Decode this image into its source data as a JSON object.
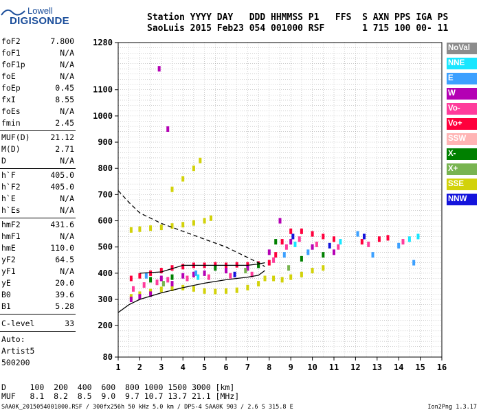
{
  "logo": {
    "top": "Lowell",
    "bottom": "DIGISONDE"
  },
  "header": {
    "line1": "Station YYYY DAY   DDD HHMMSS P1   FFS  S AXN PPS IGA PS",
    "line2": "SaoLuis 2015 Feb23 054 001000 RSF       1 715 100 00- 11"
  },
  "params": {
    "group1": [
      {
        "k": "foF2",
        "v": "7.800"
      },
      {
        "k": "foF1",
        "v": "N/A"
      },
      {
        "k": "foF1p",
        "v": "N/A"
      },
      {
        "k": "foE",
        "v": "N/A"
      },
      {
        "k": "foEp",
        "v": "0.45"
      },
      {
        "k": "fxI",
        "v": "8.55"
      },
      {
        "k": "foEs",
        "v": "N/A"
      },
      {
        "k": "fmin",
        "v": "2.45"
      }
    ],
    "group2": [
      {
        "k": "MUF(D)",
        "v": "21.12"
      },
      {
        "k": "M(D)",
        "v": "2.71"
      },
      {
        "k": "D",
        "v": "N/A"
      }
    ],
    "group3": [
      {
        "k": "h`F",
        "v": "405.0"
      },
      {
        "k": "h`F2",
        "v": "405.0"
      },
      {
        "k": "h`E",
        "v": "N/A"
      },
      {
        "k": "h`Es",
        "v": "N/A"
      }
    ],
    "group4": [
      {
        "k": "hmF2",
        "v": "431.6"
      },
      {
        "k": "hmF1",
        "v": "N/A"
      },
      {
        "k": "hmE",
        "v": "110.0"
      },
      {
        "k": "yF2",
        "v": "64.5"
      },
      {
        "k": "yF1",
        "v": "N/A"
      },
      {
        "k": "yE",
        "v": "20.0"
      },
      {
        "k": "B0",
        "v": "39.6"
      },
      {
        "k": "B1",
        "v": "5.28"
      }
    ],
    "clevel": {
      "k": "C-level",
      "v": "33"
    },
    "auto": [
      "Auto:",
      "Artist5",
      "500200"
    ]
  },
  "legend": [
    {
      "label": "NoVal",
      "color": "#8c8c8c"
    },
    {
      "label": "NNE",
      "color": "#19e6ff"
    },
    {
      "label": "E",
      "color": "#3ca0ff"
    },
    {
      "label": "W",
      "color": "#b400b4"
    },
    {
      "label": "Vo-",
      "color": "#ff3c9c"
    },
    {
      "label": "Vo+",
      "color": "#ff003c"
    },
    {
      "label": "SSW",
      "color": "#ffb4b4"
    },
    {
      "label": "X-",
      "color": "#008000"
    },
    {
      "label": "X+",
      "color": "#78b450"
    },
    {
      "label": "SSE",
      "color": "#d2d20a"
    },
    {
      "label": "NNW",
      "color": "#1414dc"
    }
  ],
  "footer": {
    "d_line": "D     100  200  400  600  800 1000 1500 3000 [km]",
    "muf_line": "MUF   8.1  8.2  8.5  9.0  9.7 10.7 13.7 21.1 [MHz]",
    "info": "SAA0K_2015054001000.RSF / 300fx256h 50 kHz 5.0 km / DPS-4 SAA0K 903 / 2.6 S 315.8 E",
    "version": "Ion2Png 1.3.17"
  },
  "chart_data": {
    "type": "scatter",
    "xlim": [
      1,
      16
    ],
    "ylim": [
      80,
      1280
    ],
    "xticks": [
      1,
      2,
      3,
      4,
      5,
      6,
      7,
      8,
      9,
      10,
      11,
      12,
      13,
      14,
      15,
      16
    ],
    "yticks": [
      80,
      200,
      300,
      400,
      500,
      600,
      700,
      800,
      900,
      1000,
      1100,
      1280
    ],
    "grid": true,
    "legend_position": "right",
    "series": [
      {
        "name": "SSE",
        "color": "#d2d20a",
        "points": [
          [
            1.6,
            310
          ],
          [
            2.0,
            320
          ],
          [
            2.5,
            330
          ],
          [
            3.0,
            338
          ],
          [
            3.5,
            342
          ],
          [
            4.0,
            345
          ],
          [
            4.5,
            340
          ],
          [
            5.0,
            332
          ],
          [
            5.5,
            330
          ],
          [
            6.0,
            332
          ],
          [
            6.5,
            335
          ],
          [
            7.0,
            345
          ],
          [
            7.5,
            360
          ],
          [
            7.8,
            380
          ],
          [
            1.6,
            565
          ],
          [
            2.0,
            568
          ],
          [
            2.5,
            572
          ],
          [
            3.0,
            575
          ],
          [
            3.5,
            580
          ],
          [
            4.0,
            585
          ],
          [
            4.5,
            592
          ],
          [
            5.0,
            600
          ],
          [
            5.3,
            610
          ],
          [
            3.5,
            720
          ],
          [
            4.0,
            760
          ],
          [
            4.5,
            800
          ],
          [
            4.8,
            830
          ],
          [
            8.2,
            380
          ],
          [
            8.6,
            375
          ],
          [
            9.0,
            385
          ],
          [
            9.5,
            395
          ],
          [
            10.0,
            410
          ],
          [
            10.5,
            420
          ]
        ]
      },
      {
        "name": "Vo+",
        "color": "#ff003c",
        "points": [
          [
            1.6,
            380
          ],
          [
            2.0,
            390
          ],
          [
            2.5,
            400
          ],
          [
            3.0,
            410
          ],
          [
            3.5,
            420
          ],
          [
            4.0,
            425
          ],
          [
            4.5,
            430
          ],
          [
            5.0,
            430
          ],
          [
            5.5,
            432
          ],
          [
            6.0,
            430
          ],
          [
            6.5,
            432
          ],
          [
            7.0,
            432
          ],
          [
            7.5,
            435
          ],
          [
            8.0,
            440
          ],
          [
            8.3,
            470
          ],
          [
            8.6,
            520
          ],
          [
            9.0,
            560
          ],
          [
            9.5,
            560
          ],
          [
            10.0,
            550
          ],
          [
            10.5,
            540
          ],
          [
            11.0,
            530
          ],
          [
            12.3,
            520
          ],
          [
            13.1,
            530
          ],
          [
            13.5,
            535
          ]
        ]
      },
      {
        "name": "W",
        "color": "#b400b4",
        "points": [
          [
            1.6,
            300
          ],
          [
            2.0,
            310
          ],
          [
            2.5,
            320
          ],
          [
            3.0,
            380
          ],
          [
            3.5,
            360
          ],
          [
            4.0,
            390
          ],
          [
            4.5,
            395
          ],
          [
            5.0,
            400
          ],
          [
            6.0,
            410
          ],
          [
            7.0,
            420
          ],
          [
            8.0,
            480
          ],
          [
            8.5,
            600
          ],
          [
            9.0,
            520
          ],
          [
            10.0,
            500
          ],
          [
            11.0,
            480
          ],
          [
            3.3,
            950
          ],
          [
            2.9,
            1180
          ]
        ]
      },
      {
        "name": "Vo-",
        "color": "#ff3c9c",
        "points": [
          [
            1.7,
            340
          ],
          [
            2.2,
            355
          ],
          [
            2.8,
            365
          ],
          [
            3.3,
            375
          ],
          [
            4.2,
            380
          ],
          [
            5.2,
            385
          ],
          [
            6.2,
            390
          ],
          [
            7.2,
            395
          ],
          [
            8.2,
            450
          ],
          [
            8.8,
            500
          ],
          [
            9.4,
            530
          ],
          [
            10.2,
            510
          ],
          [
            11.2,
            500
          ],
          [
            12.6,
            510
          ],
          [
            14.2,
            520
          ]
        ]
      },
      {
        "name": "X-",
        "color": "#008000",
        "points": [
          [
            2.5,
            375
          ],
          [
            3.5,
            385
          ],
          [
            5.5,
            420
          ],
          [
            7.5,
            430
          ],
          [
            8.3,
            520
          ],
          [
            9.5,
            455
          ],
          [
            10.5,
            470
          ]
        ]
      },
      {
        "name": "E",
        "color": "#3ca0ff",
        "points": [
          [
            2.3,
            390
          ],
          [
            4.6,
            400
          ],
          [
            8.7,
            470
          ],
          [
            9.8,
            480
          ],
          [
            12.1,
            550
          ],
          [
            12.8,
            470
          ],
          [
            14.0,
            505
          ],
          [
            14.7,
            440
          ]
        ]
      },
      {
        "name": "NNE",
        "color": "#19e6ff",
        "points": [
          [
            4.7,
            385
          ],
          [
            9.2,
            510
          ],
          [
            11.3,
            520
          ],
          [
            14.5,
            530
          ],
          [
            14.9,
            540
          ]
        ]
      },
      {
        "name": "NNW",
        "color": "#1414dc",
        "points": [
          [
            6.4,
            395
          ],
          [
            9.1,
            540
          ],
          [
            10.8,
            505
          ],
          [
            12.4,
            540
          ]
        ]
      },
      {
        "name": "X+",
        "color": "#78b450",
        "points": [
          [
            3.1,
            360
          ],
          [
            6.9,
            410
          ],
          [
            8.9,
            420
          ]
        ]
      }
    ],
    "curves": [
      {
        "style": "solid",
        "color": "#000000",
        "points": [
          [
            1.0,
            250
          ],
          [
            1.5,
            280
          ],
          [
            2.0,
            300
          ],
          [
            3.0,
            325
          ],
          [
            4.0,
            345
          ],
          [
            5.0,
            362
          ],
          [
            6.0,
            375
          ],
          [
            7.0,
            385
          ],
          [
            7.5,
            392
          ],
          [
            7.8,
            410
          ]
        ]
      },
      {
        "style": "dashed",
        "color": "#000000",
        "points": [
          [
            1.0,
            715
          ],
          [
            1.5,
            670
          ],
          [
            2.0,
            630
          ],
          [
            3.0,
            590
          ],
          [
            4.0,
            560
          ],
          [
            5.0,
            530
          ],
          [
            6.0,
            500
          ],
          [
            7.0,
            460
          ],
          [
            7.5,
            440
          ],
          [
            7.8,
            425
          ]
        ]
      },
      {
        "style": "solid",
        "color": "#000000",
        "points": [
          [
            2.0,
            400
          ],
          [
            3.0,
            405
          ],
          [
            4.0,
            430
          ],
          [
            5.0,
            430
          ],
          [
            6.0,
            430
          ],
          [
            7.0,
            430
          ],
          [
            7.5,
            435
          ],
          [
            7.8,
            440
          ]
        ]
      }
    ]
  }
}
